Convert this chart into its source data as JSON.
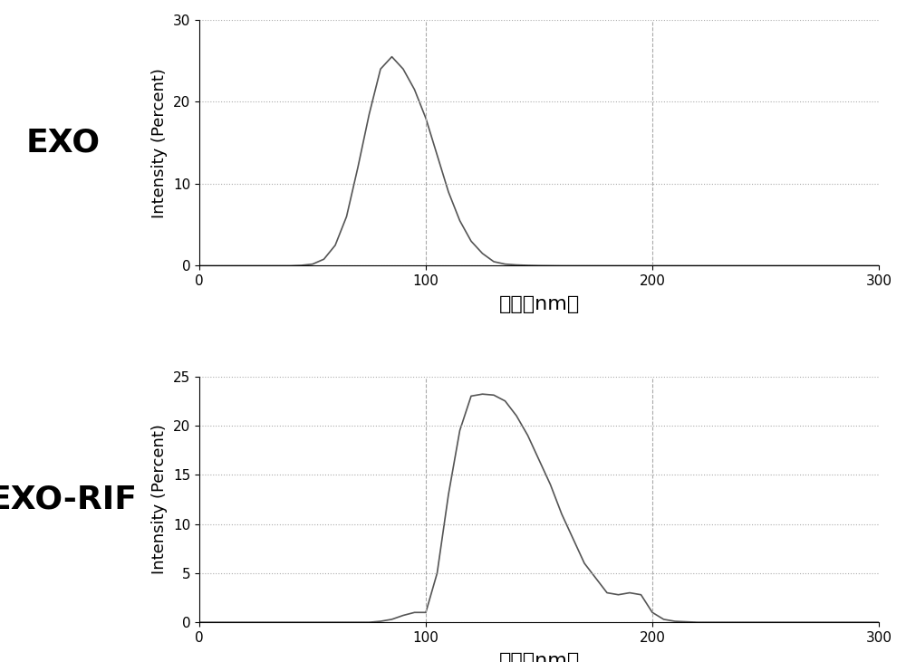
{
  "exo": {
    "label": "EXO",
    "x": [
      0,
      40,
      45,
      50,
      55,
      60,
      65,
      70,
      75,
      80,
      85,
      90,
      95,
      100,
      105,
      110,
      115,
      120,
      125,
      130,
      135,
      140,
      145,
      150,
      155,
      160,
      300
    ],
    "y": [
      0,
      0,
      0.05,
      0.2,
      0.8,
      2.5,
      6.0,
      12.0,
      18.5,
      24.0,
      25.5,
      24.0,
      21.5,
      18.0,
      13.5,
      9.0,
      5.5,
      3.0,
      1.5,
      0.5,
      0.2,
      0.1,
      0.05,
      0.02,
      0.01,
      0,
      0
    ],
    "ylim": [
      0,
      30
    ],
    "yticks": [
      0,
      10,
      20,
      30
    ],
    "xticks": [
      0,
      100,
      200,
      300
    ],
    "vlines": [
      100,
      200
    ],
    "grid_color": "#aaaaaa",
    "line_color": "#555555"
  },
  "exo_rif": {
    "label": "EXO-RIF",
    "x": [
      0,
      75,
      80,
      85,
      90,
      95,
      100,
      105,
      110,
      115,
      120,
      125,
      130,
      135,
      140,
      145,
      150,
      155,
      160,
      165,
      170,
      175,
      180,
      185,
      190,
      195,
      200,
      205,
      210,
      215,
      220,
      300
    ],
    "y": [
      0,
      0,
      0.1,
      0.3,
      0.7,
      1.0,
      1.0,
      5.0,
      13.0,
      19.5,
      23.0,
      23.2,
      23.1,
      22.5,
      21.0,
      19.0,
      16.5,
      14.0,
      11.0,
      8.5,
      6.0,
      4.5,
      3.0,
      2.8,
      3.0,
      2.8,
      1.0,
      0.3,
      0.1,
      0.05,
      0.0,
      0
    ],
    "ylim": [
      0,
      25
    ],
    "yticks": [
      0,
      5,
      10,
      15,
      20,
      25
    ],
    "xticks": [
      0,
      100,
      200,
      300
    ],
    "vlines": [
      100,
      200
    ],
    "grid_color": "#aaaaaa",
    "line_color": "#555555"
  },
  "xlabel": "粒径（nm）",
  "ylabel": "Intensity (Percent)",
  "bg_color": "#ffffff",
  "label_fontsize": 26,
  "axis_label_fontsize": 13,
  "tick_fontsize": 11,
  "xlabel_fontsize": 16
}
